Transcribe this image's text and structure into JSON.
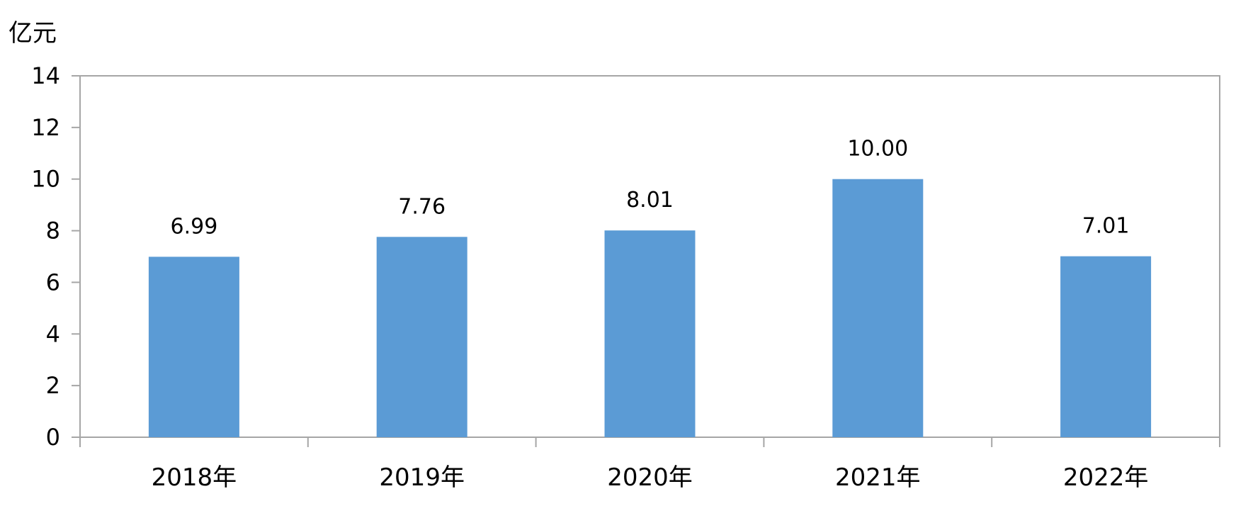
{
  "chart_data": {
    "type": "bar",
    "title": "",
    "ylabel": "亿元",
    "xlabel": "",
    "categories": [
      "2018年",
      "2019年",
      "2020年",
      "2021年",
      "2022年"
    ],
    "values": [
      6.99,
      7.76,
      8.01,
      10.0,
      7.01
    ],
    "value_labels": [
      "6.99",
      "7.76",
      "8.01",
      "10.00",
      "7.01"
    ],
    "ylim": [
      0,
      14
    ],
    "yticks": [
      0,
      2,
      4,
      6,
      8,
      10,
      12,
      14
    ],
    "grid": false,
    "legend": "none",
    "bar_color": "#5b9bd5",
    "axis_color": "#a6a6a6"
  }
}
